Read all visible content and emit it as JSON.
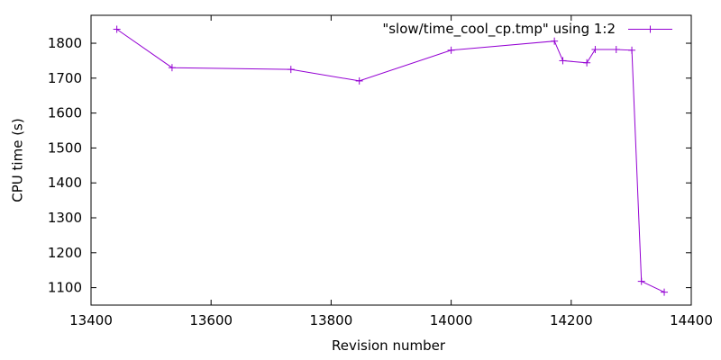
{
  "chart_data": {
    "type": "line",
    "title": "",
    "xlabel": "Revision number",
    "ylabel": "CPU time (s)",
    "xlim": [
      13400,
      14400
    ],
    "ylim": [
      1050,
      1880
    ],
    "xticks": [
      13400,
      13600,
      13800,
      14000,
      14200,
      14400
    ],
    "yticks": [
      1100,
      1200,
      1300,
      1400,
      1500,
      1600,
      1700,
      1800
    ],
    "grid": false,
    "legend_position": "top-right",
    "series": [
      {
        "name": "\"slow/time_cool_cp.tmp\" using 1:2",
        "color": "#9400d3",
        "marker": "plus",
        "x": [
          13443,
          13535,
          13733,
          13847,
          14000,
          14172,
          14186,
          14226,
          14240,
          14275,
          14301,
          14317,
          14355
        ],
        "y": [
          1840,
          1730,
          1725,
          1692,
          1780,
          1806,
          1750,
          1744,
          1782,
          1782,
          1780,
          1118,
          1087
        ]
      }
    ]
  }
}
